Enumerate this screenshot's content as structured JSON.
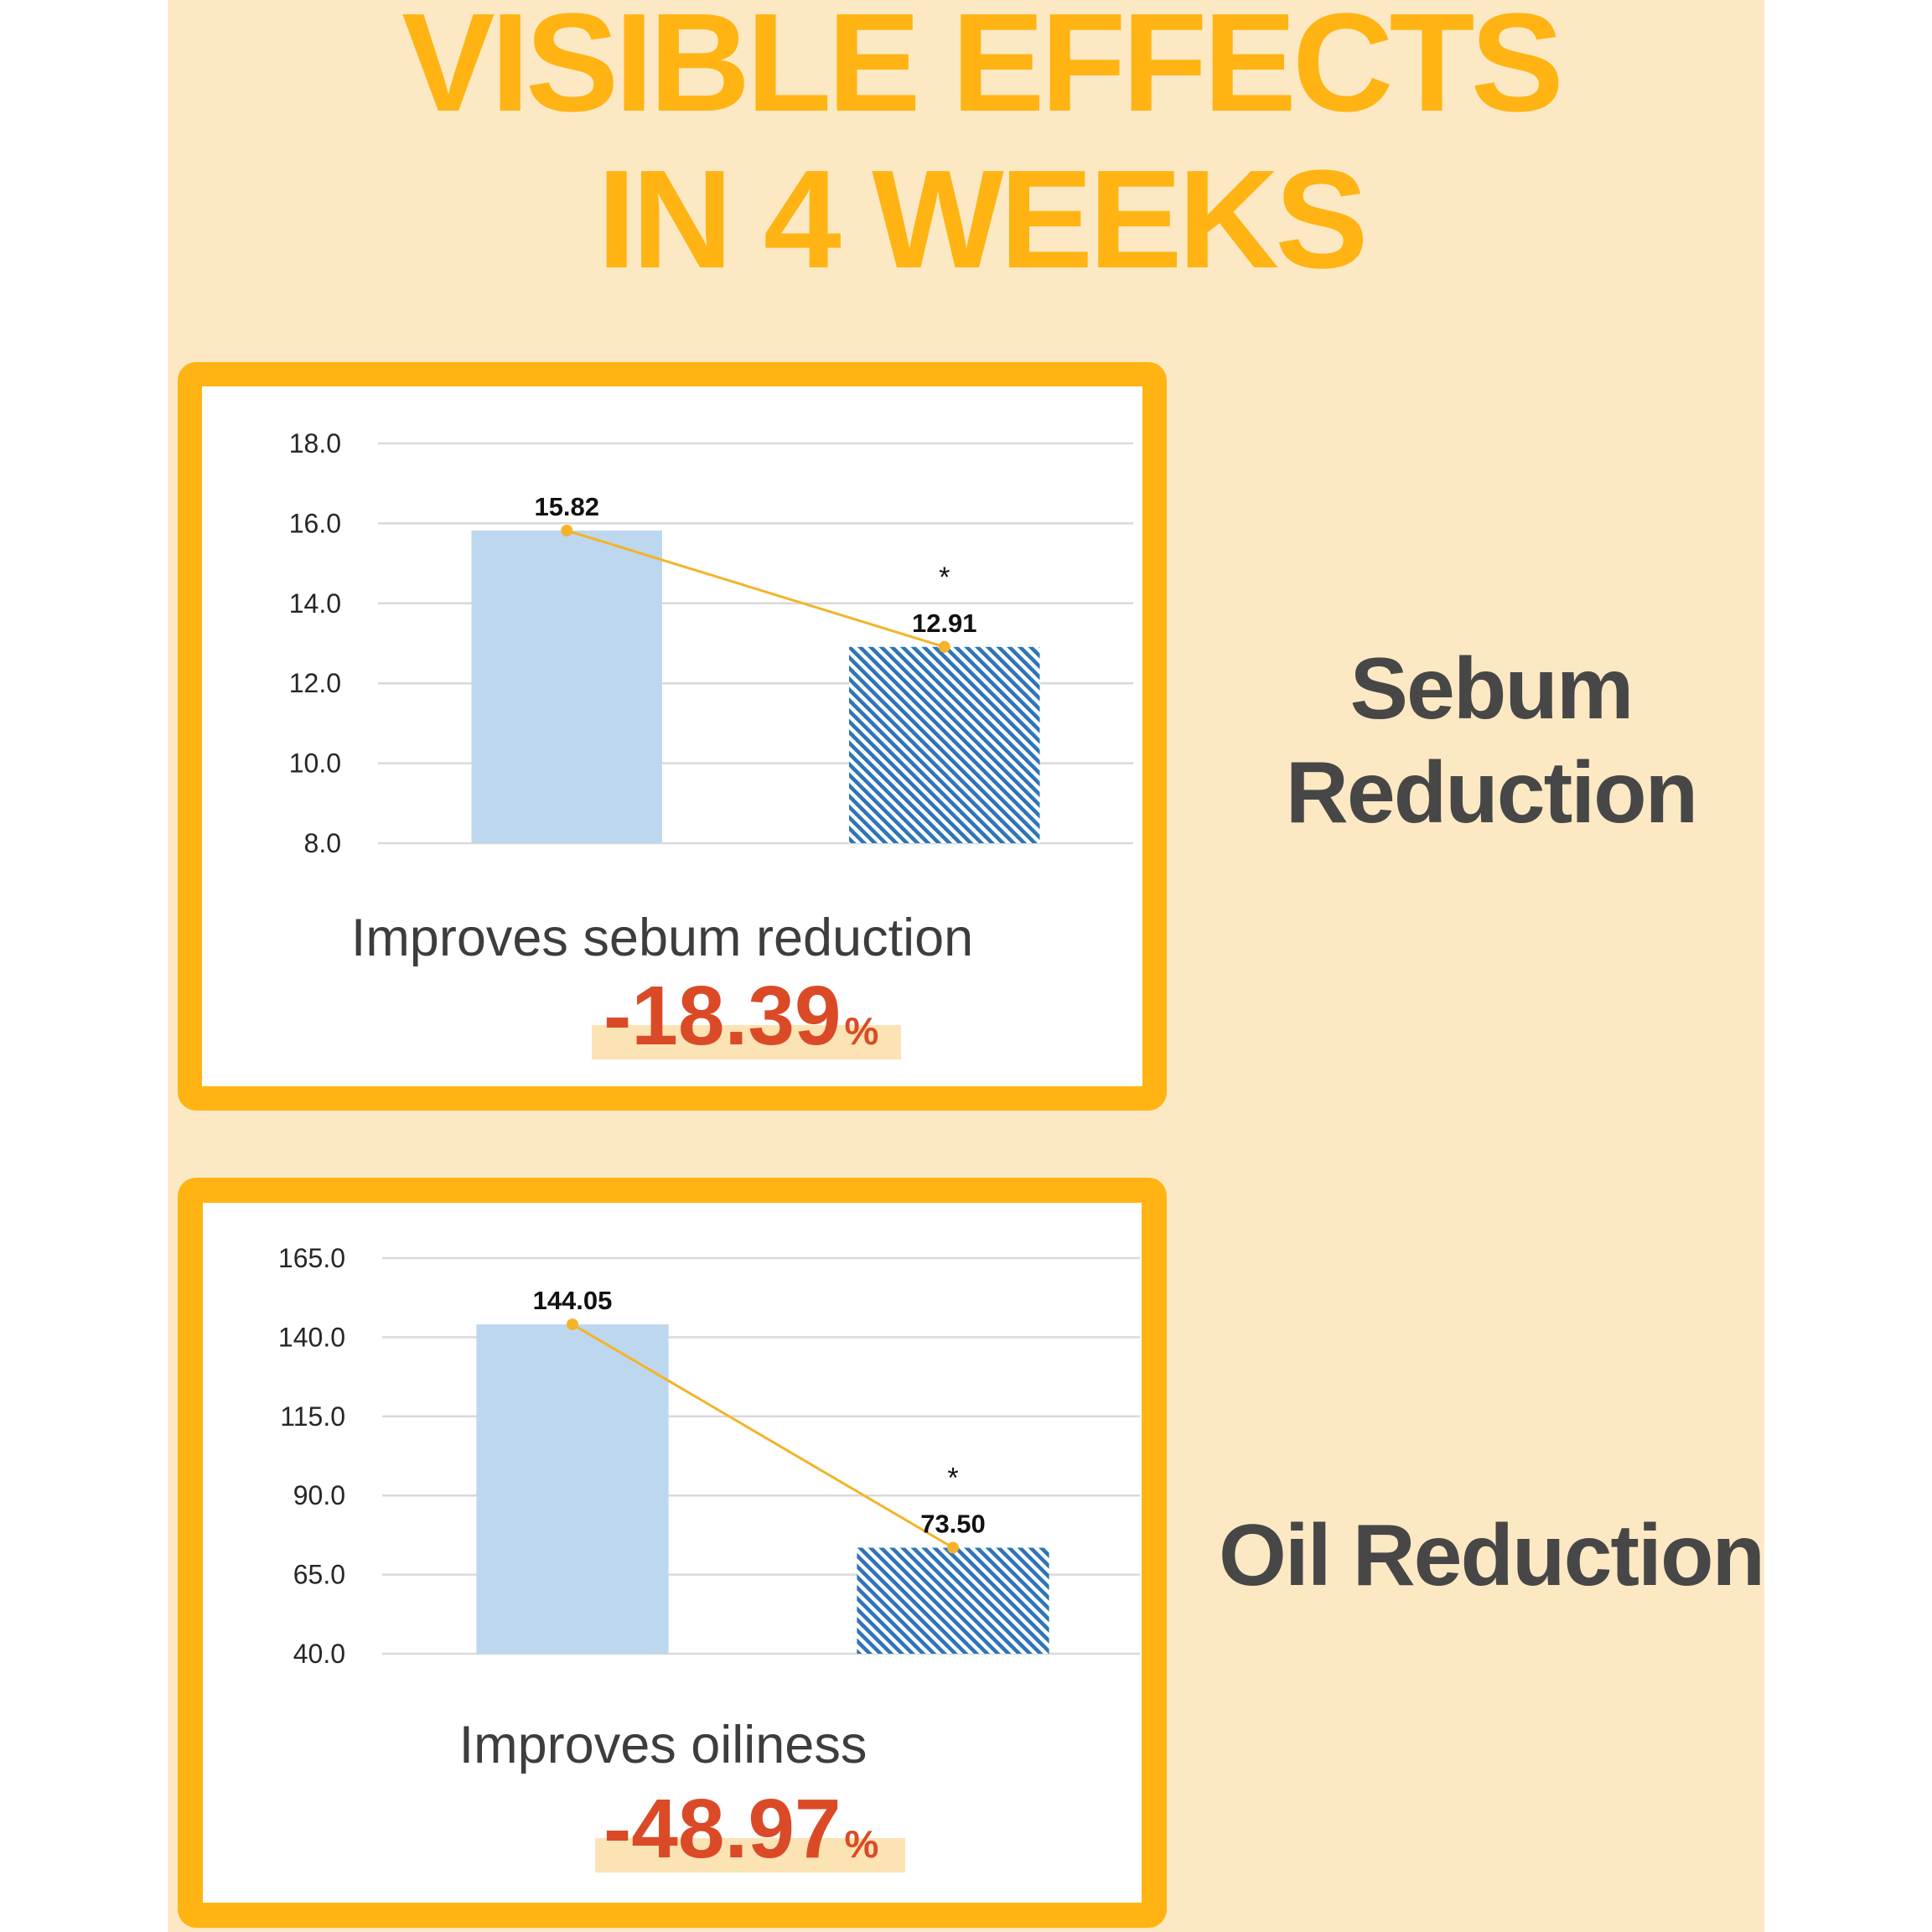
{
  "title": {
    "line1": "VISIBLE EFFECTS",
    "line2": "IN 4 WEEKS"
  },
  "colors": {
    "background": "#FCE9C4",
    "accent_orange": "#FFB414",
    "heading_text": "#474747",
    "change_red": "#DB4A27",
    "highlight": "#FBE3B4"
  },
  "panels": [
    {
      "heading_lines": [
        "Sebum",
        "Reduction"
      ],
      "caption": "Improves sebum reduction",
      "change_value": "-18.39",
      "change_unit": "%"
    },
    {
      "heading_lines": [
        "Oil Reduction"
      ],
      "caption": "Improves oiliness",
      "change_value": "-48.97",
      "change_unit": "%"
    }
  ],
  "chart_data": [
    {
      "type": "bar",
      "values": [
        15.82,
        12.91
      ],
      "value_labels": [
        "15.82",
        "12.91"
      ],
      "ylim": [
        8.0,
        18.0
      ],
      "yticks": [
        8.0,
        10.0,
        12.0,
        14.0,
        16.0,
        18.0
      ],
      "ytick_labels": [
        "8.0",
        "10.0",
        "12.0",
        "14.0",
        "16.0",
        "18.0"
      ],
      "grid": true,
      "bar_colors": [
        "#BDD7EE",
        "#2E75B6"
      ],
      "hatched": [
        false,
        true
      ],
      "trend_line": true,
      "trend_line_color": "#F4B328",
      "annotations": [
        {
          "category_index": 1,
          "text": "*"
        }
      ]
    },
    {
      "type": "bar",
      "values": [
        144.05,
        73.5
      ],
      "value_labels": [
        "144.05",
        "73.50"
      ],
      "ylim": [
        40.0,
        165.0
      ],
      "yticks": [
        40.0,
        65.0,
        90.0,
        115.0,
        140.0,
        165.0
      ],
      "ytick_labels": [
        "40.0",
        "65.0",
        "90.0",
        "115.0",
        "140.0",
        "165.0"
      ],
      "grid": true,
      "bar_colors": [
        "#BDD7EE",
        "#2E75B6"
      ],
      "hatched": [
        false,
        true
      ],
      "trend_line": true,
      "trend_line_color": "#F4B328",
      "annotations": [
        {
          "category_index": 1,
          "text": "*"
        }
      ]
    }
  ]
}
